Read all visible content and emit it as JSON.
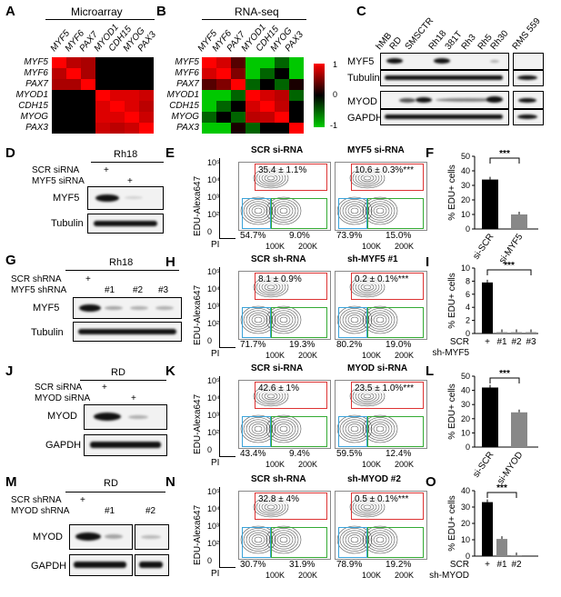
{
  "panels": {
    "A": "A",
    "B": "B",
    "C": "C",
    "D": "D",
    "E": "E",
    "F": "F",
    "G": "G",
    "H": "H",
    "I": "I",
    "J": "J",
    "K": "K",
    "L": "L",
    "M": "M",
    "N": "N",
    "O": "O"
  },
  "heatmapA": {
    "title": "Microarray",
    "genes": [
      "MYF5",
      "MYF6",
      "PAX7",
      "MYOD1",
      "CDH15",
      "MYOG",
      "PAX3"
    ]
  },
  "heatmapB": {
    "title": "RNA-seq",
    "genes": [
      "MYF5",
      "MYF6",
      "PAX7",
      "MYOD1",
      "CDH15",
      "MYOG",
      "PAX3"
    ]
  },
  "colorbar": {
    "ticks": [
      "1",
      "0",
      "-1"
    ],
    "colors": {
      "high": "#ff0000",
      "mid": "#000000",
      "low": "#00cc00"
    }
  },
  "panelC": {
    "lanes": [
      "hMB",
      "RD",
      "SMSCTR",
      "Rh18",
      "381T",
      "Rh3",
      "Rh5",
      "Rh30",
      "RMS 559"
    ],
    "labels": [
      "MYF5",
      "Tubulin",
      "MYOD",
      "GAPDH"
    ]
  },
  "panelD": {
    "cell": "Rh18",
    "rows": [
      "SCR siRNA",
      "MYF5 siRNA"
    ],
    "marks": [
      "+",
      "+"
    ],
    "labels": [
      "MYF5",
      "Tubulin"
    ]
  },
  "panelG": {
    "cell": "Rh18",
    "rows": [
      "SCR shRNA",
      "MYF5 shRNA"
    ],
    "marks": [
      "+",
      "#1",
      "#2",
      "#3"
    ],
    "labels": [
      "MYF5",
      "Tubulin"
    ]
  },
  "panelJ": {
    "cell": "RD",
    "rows": [
      "SCR siRNA",
      "MYOD siRNA"
    ],
    "marks": [
      "+",
      "+"
    ],
    "labels": [
      "MYOD",
      "GAPDH"
    ]
  },
  "panelM": {
    "cell": "RD",
    "rows": [
      "SCR shRNA",
      "MYOD shRNA"
    ],
    "marks": [
      "+",
      "#1",
      "#2"
    ],
    "labels": [
      "MYOD",
      "GAPDH"
    ]
  },
  "flow": {
    "ylabel": "EDU-Alexa647",
    "xlabel": "PI",
    "yticks": [
      "10⁵",
      "10⁴",
      "10³",
      "10²",
      "0"
    ],
    "xticks": [
      "0",
      "100K",
      "200K"
    ],
    "E": {
      "left": {
        "title": "SCR si-RNA",
        "top": "35.4 ± 1.1%",
        "bl": "54.7%",
        "br": "9.0%"
      },
      "right": {
        "title": "MYF5 si-RNA",
        "top": "10.6 ± 0.3%***",
        "bl": "73.9%",
        "br": "15.0%"
      }
    },
    "H": {
      "left": {
        "title": "SCR sh-RNA",
        "top": "8.1 ± 0.9%",
        "bl": "71.7%",
        "br": "19.3%"
      },
      "right": {
        "title": "sh-MYF5 #1",
        "top": "0.2 ± 0.1%***",
        "bl": "80.2%",
        "br": "19.0%"
      }
    },
    "K": {
      "left": {
        "title": "SCR si-RNA",
        "top": "42.6 ± 1%",
        "bl": "43.4%",
        "br": "9.4%"
      },
      "right": {
        "title": "MYOD si-RNA",
        "top": "23.5 ± 1.0%***",
        "bl": "59.5%",
        "br": "12.4%"
      }
    },
    "N": {
      "left": {
        "title": "SCR sh-RNA",
        "top": "32.8 ± 4%",
        "bl": "30.7%",
        "br": "31.9%"
      },
      "right": {
        "title": "sh-MYOD #2",
        "top": "0.5 ± 0.1%***",
        "bl": "78.9%",
        "br": "19.2%"
      }
    }
  },
  "chart_data": [
    {
      "type": "bar",
      "panel": "F",
      "categories": [
        "si-SCR",
        "si-MYF5"
      ],
      "values": [
        34,
        10
      ],
      "ylabel": "% EDU+ cells",
      "ylim": [
        0,
        50
      ],
      "yticks": [
        0,
        10,
        20,
        30,
        40,
        50
      ],
      "significance": "***"
    },
    {
      "type": "bar",
      "panel": "I",
      "categories": [
        "+",
        "#1",
        "#2",
        "#3"
      ],
      "values": [
        7.8,
        0.2,
        0.2,
        0.2
      ],
      "ylabel": "% EDU+ cells",
      "ylim": [
        0,
        10
      ],
      "yticks": [
        0,
        2,
        4,
        6,
        8,
        10
      ],
      "xrow1": "SCR",
      "xrow2": "sh-MYF5",
      "significance": "***"
    },
    {
      "type": "bar",
      "panel": "L",
      "categories": [
        "si-SCR",
        "si-MYOD"
      ],
      "values": [
        42,
        24.5
      ],
      "ylabel": "% EDU+ cells",
      "ylim": [
        0,
        50
      ],
      "yticks": [
        0,
        10,
        20,
        30,
        40,
        50
      ],
      "significance": "***"
    },
    {
      "type": "bar",
      "panel": "O",
      "categories": [
        "+",
        "#1",
        "#2"
      ],
      "values": [
        33,
        10.5,
        0.5
      ],
      "ylabel": "% EDU+ cells",
      "ylim": [
        0,
        40
      ],
      "yticks": [
        0,
        10,
        20,
        30,
        40
      ],
      "xrow1": "SCR",
      "xrow2": "sh-MYOD",
      "significance": "***"
    }
  ]
}
